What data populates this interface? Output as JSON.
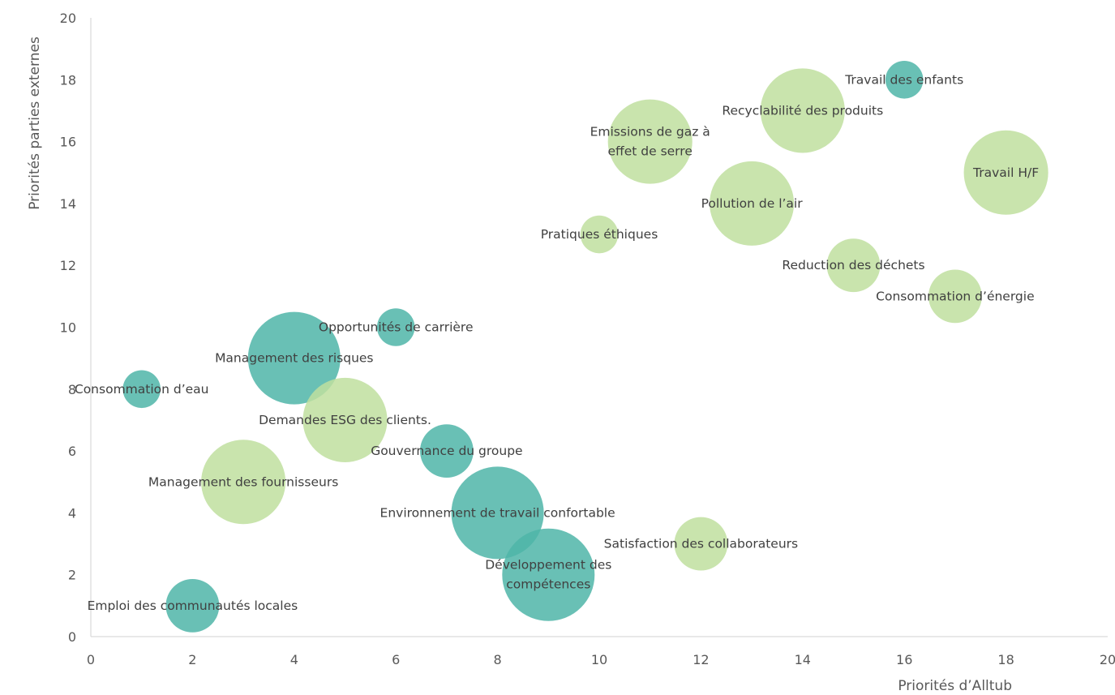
{
  "chart_data": {
    "type": "bubble",
    "xlabel": "Priorités d’Alltub",
    "ylabel": "Priorités parties externes",
    "xlim": [
      0,
      20
    ],
    "ylim": [
      0,
      20
    ],
    "x_ticks": [
      "0",
      "2",
      "4",
      "6",
      "8",
      "10",
      "12",
      "14",
      "16",
      "18",
      "20"
    ],
    "y_ticks": [
      "0",
      "2",
      "4",
      "6",
      "8",
      "10",
      "12",
      "14",
      "16",
      "18",
      "20"
    ],
    "grid": false,
    "legend": "none",
    "colors": {
      "teal": "#4fb5a8",
      "green": "#bfdf9f"
    },
    "points": [
      {
        "label": "Consommation d’eau",
        "x": 1,
        "y": 8,
        "size": 1,
        "color": "teal"
      },
      {
        "label": "Emploi des communautés locales",
        "x": 2,
        "y": 1,
        "size": 2,
        "color": "teal"
      },
      {
        "label": "Management des fournisseurs",
        "x": 3,
        "y": 5,
        "size": 5,
        "color": "green"
      },
      {
        "label": "Management des risques",
        "x": 4,
        "y": 9,
        "size": 6,
        "color": "teal"
      },
      {
        "label": "Demandes ESG des clients.",
        "x": 5,
        "y": 7,
        "size": 5,
        "color": "green"
      },
      {
        "label": "Opportunités de carrière",
        "x": 6,
        "y": 10,
        "size": 1,
        "color": "teal"
      },
      {
        "label": "Gouvernance du groupe",
        "x": 7,
        "y": 6,
        "size": 2,
        "color": "teal"
      },
      {
        "label": "Environnement de travail confortable",
        "x": 8,
        "y": 4,
        "size": 6,
        "color": "teal"
      },
      {
        "label": "Développement des compétences",
        "lines": [
          "Développement des",
          "compétences"
        ],
        "x": 9,
        "y": 2,
        "size": 6,
        "color": "teal"
      },
      {
        "label": "Pratiques éthiques",
        "x": 10,
        "y": 13,
        "size": 1,
        "color": "green"
      },
      {
        "label": "Emissions de gaz à effet de serre",
        "lines": [
          "Emissions de gaz à",
          "effet de serre"
        ],
        "x": 11,
        "y": 16,
        "size": 5,
        "color": "green"
      },
      {
        "label": "Satisfaction des collaborateurs",
        "x": 12,
        "y": 3,
        "size": 2,
        "color": "green"
      },
      {
        "label": "Pollution de l’air",
        "x": 13,
        "y": 14,
        "size": 5,
        "color": "green"
      },
      {
        "label": "Recyclabilité des produits",
        "x": 14,
        "y": 17,
        "size": 5,
        "color": "green"
      },
      {
        "label": "Reduction des déchets",
        "x": 15,
        "y": 12,
        "size": 2,
        "color": "green"
      },
      {
        "label": "Travail des enfants",
        "x": 16,
        "y": 18,
        "size": 1,
        "color": "teal"
      },
      {
        "label": "Consommation d’énergie",
        "x": 17,
        "y": 11,
        "size": 2,
        "color": "green"
      },
      {
        "label": "Travail H/F",
        "x": 18,
        "y": 15,
        "size": 5,
        "color": "green"
      }
    ]
  }
}
